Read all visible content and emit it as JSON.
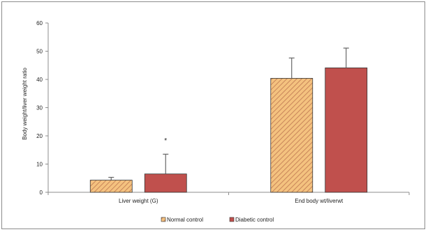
{
  "chart_data": {
    "type": "bar",
    "categories": [
      "Liver weight (G)",
      "End body wt/liverwt"
    ],
    "series": [
      {
        "name": "Normal control",
        "values": [
          4.3,
          40.4
        ],
        "errors": [
          1.0,
          7.2
        ],
        "color": "#f4c27f",
        "hatch_color": "#c8855a",
        "pattern": "diagonal-hatch"
      },
      {
        "name": "Diabetic control",
        "values": [
          6.5,
          44.1
        ],
        "errors": [
          7.0,
          7.0
        ],
        "color": "#c0504d",
        "pattern": "solid"
      }
    ],
    "annotations": [
      {
        "text": "*",
        "category_index": 0,
        "series_index": 1,
        "y": 18.5
      }
    ],
    "ylabel": "Body weight/liver weight ratio",
    "xlabel": "",
    "title": "",
    "ylim": [
      0,
      60
    ],
    "yticks": [
      0,
      10,
      20,
      30,
      40,
      50,
      60
    ],
    "grid": false,
    "legend_position": "bottom-center"
  }
}
